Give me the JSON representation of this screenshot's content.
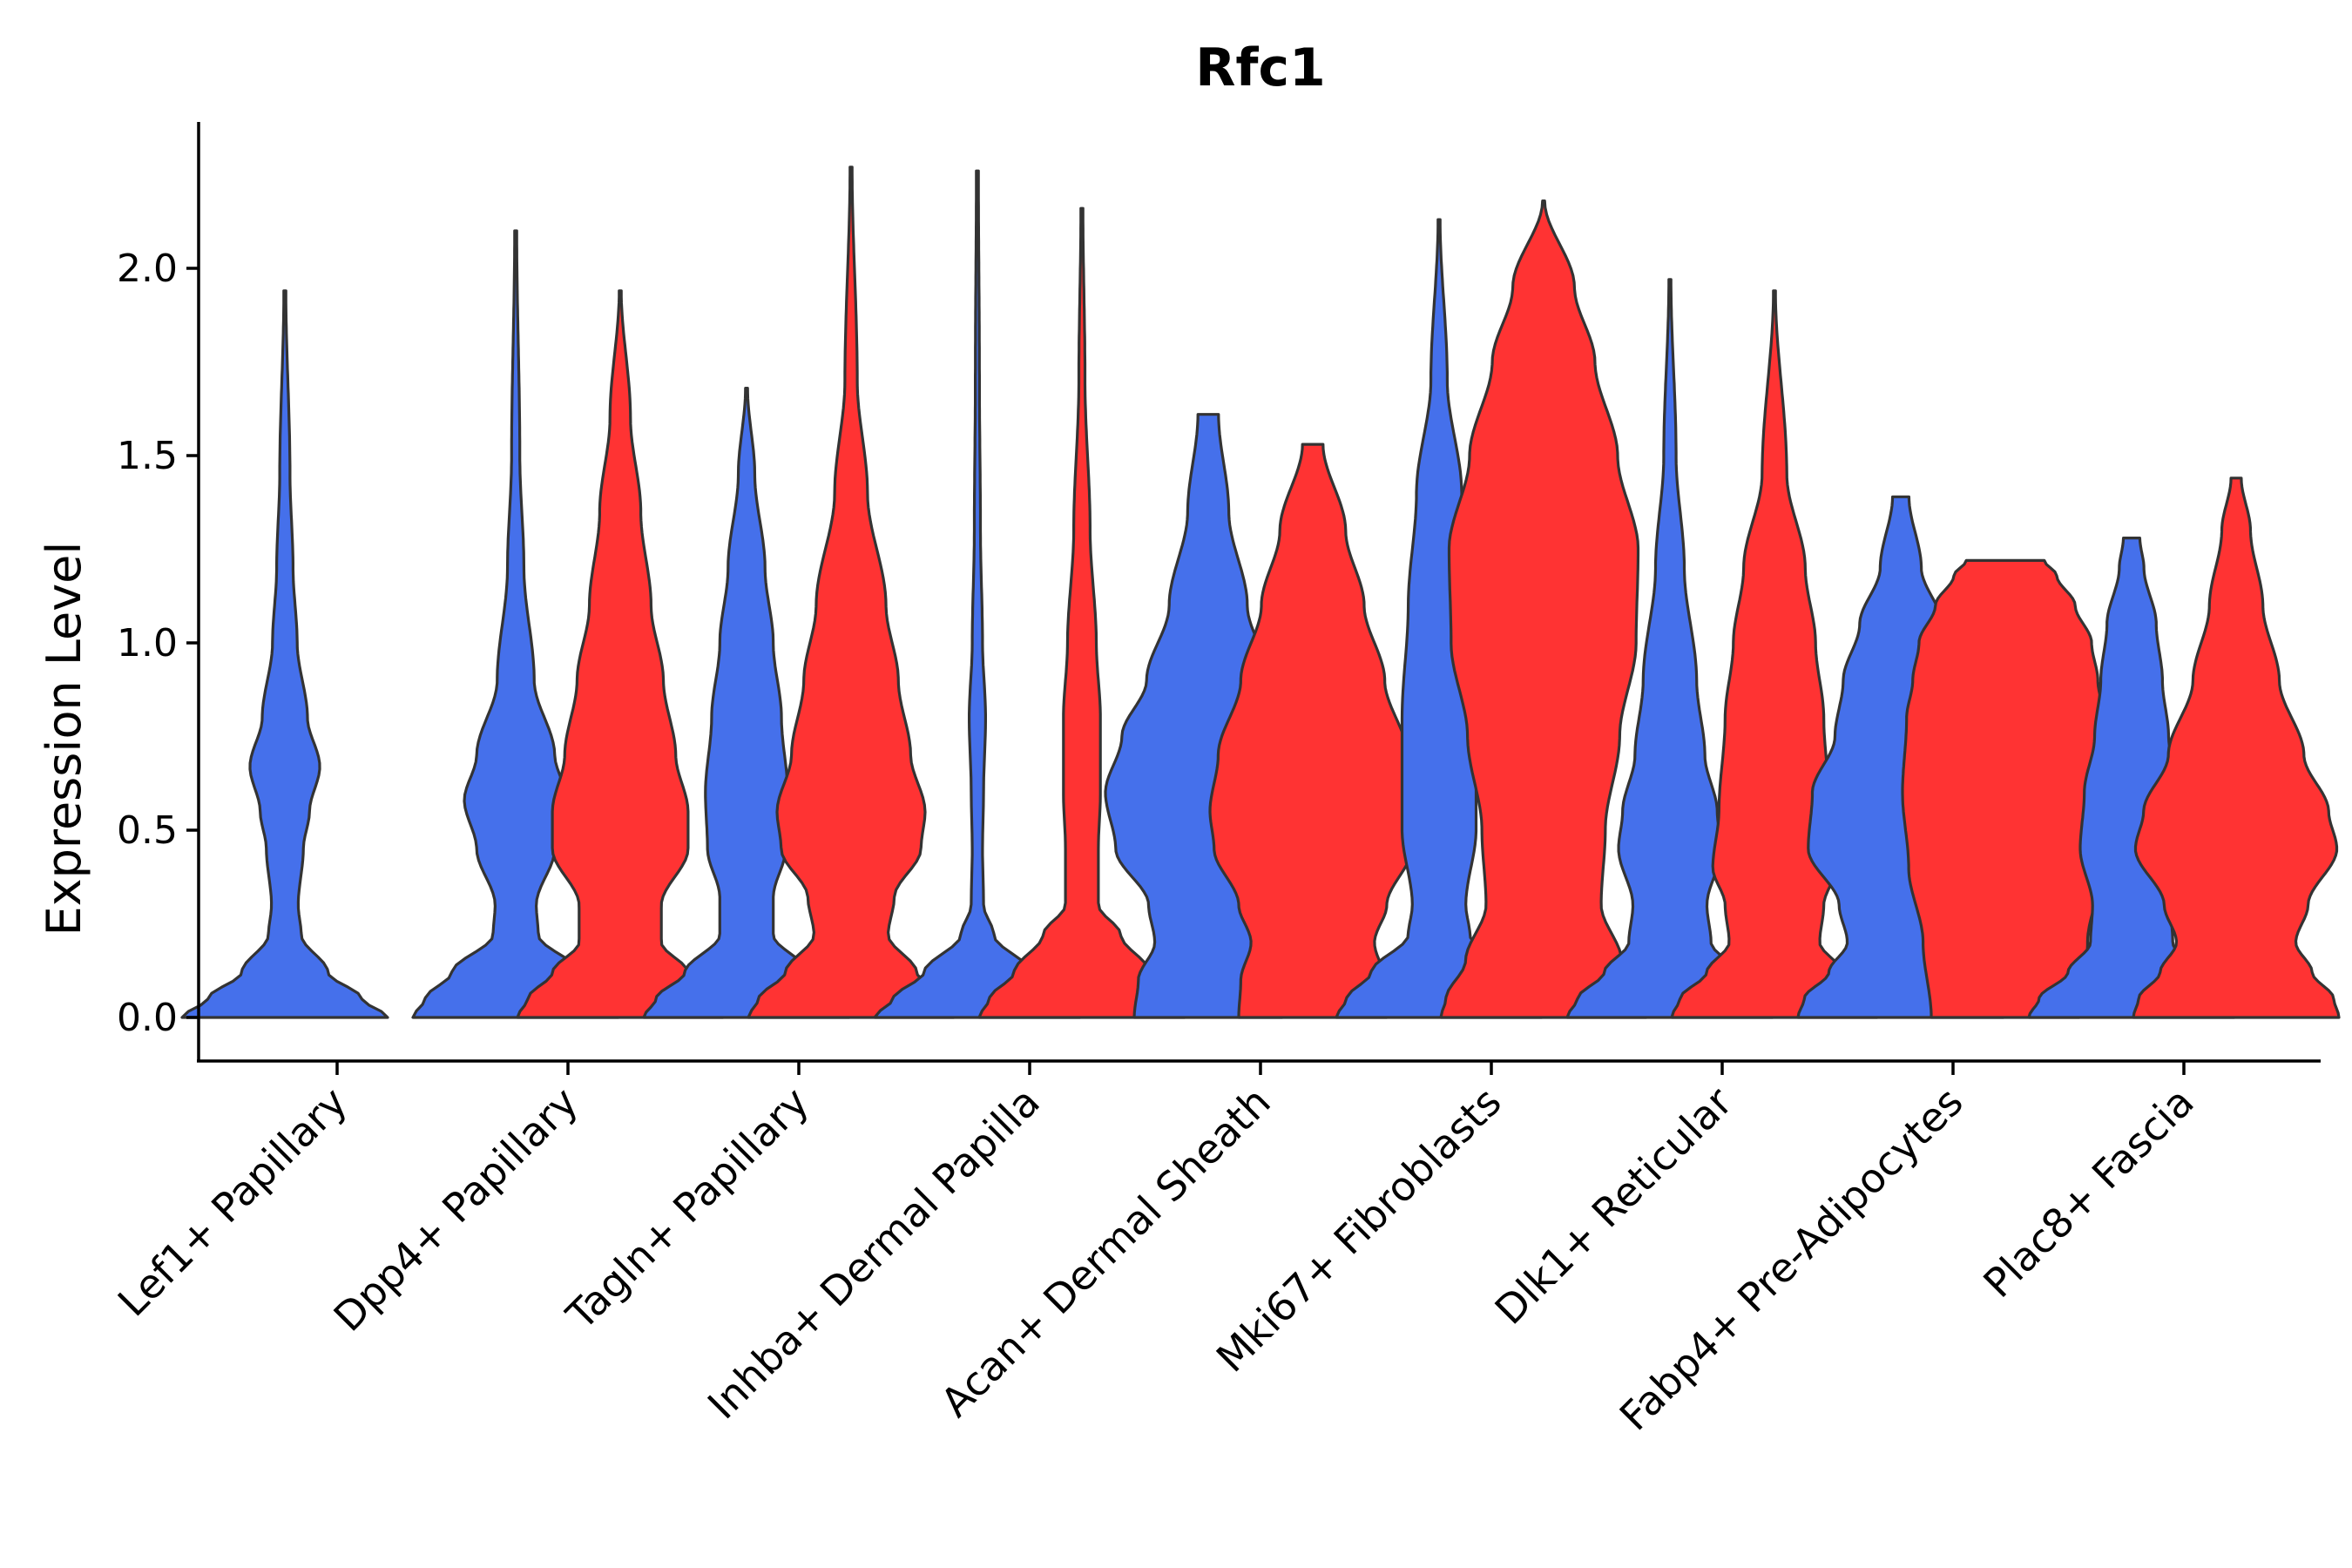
{
  "chart_data": {
    "type": "violin",
    "title": "Rfc1",
    "xlabel": "",
    "ylabel": "Expression Level",
    "ylim": [
      -0.11,
      2.38
    ],
    "yticks": [
      "0.0",
      "0.5",
      "1.0",
      "1.5",
      "2.0"
    ],
    "grid": false,
    "legend": "none",
    "colors": {
      "blue": "#4570EB",
      "red": "#FF3333",
      "outline": "#333333"
    },
    "categories": [
      "Lef1+ Papillary",
      "Dpp4+ Papillary",
      "Tagln+ Papillary",
      "Inhba+ Dermal Papilla",
      "Acan+ Dermal Sheath",
      "Mki67+ Fibroblasts",
      "Dlk1+ Reticular",
      "Fabp4+ Pre-Adipocytes",
      "Plac8+ Fascia"
    ],
    "violins": [
      {
        "category": "Lef1+ Papillary",
        "group": "blue",
        "max": 1.94,
        "profile": [
          [
            0,
            1.0
          ],
          [
            0.05,
            0.75
          ],
          [
            0.12,
            0.42
          ],
          [
            0.22,
            0.16
          ],
          [
            0.3,
            0.13
          ],
          [
            0.45,
            0.18
          ],
          [
            0.55,
            0.24
          ],
          [
            0.67,
            0.34
          ],
          [
            0.8,
            0.22
          ],
          [
            1.0,
            0.12
          ],
          [
            1.2,
            0.08
          ],
          [
            1.45,
            0.05
          ],
          [
            1.94,
            0.01
          ]
        ]
      },
      {
        "category": "Dpp4+ Papillary",
        "group": "blue",
        "max": 2.1,
        "profile": [
          [
            0,
            1.0
          ],
          [
            0.05,
            0.88
          ],
          [
            0.12,
            0.62
          ],
          [
            0.22,
            0.22
          ],
          [
            0.3,
            0.2
          ],
          [
            0.45,
            0.38
          ],
          [
            0.58,
            0.5
          ],
          [
            0.7,
            0.38
          ],
          [
            0.9,
            0.18
          ],
          [
            1.2,
            0.08
          ],
          [
            1.5,
            0.04
          ],
          [
            2.1,
            0.01
          ]
        ]
      },
      {
        "category": "Dpp4+ Papillary",
        "group": "red",
        "max": 1.94,
        "profile": [
          [
            0,
            1.0
          ],
          [
            0.05,
            0.9
          ],
          [
            0.12,
            0.66
          ],
          [
            0.2,
            0.4
          ],
          [
            0.3,
            0.4
          ],
          [
            0.45,
            0.66
          ],
          [
            0.55,
            0.66
          ],
          [
            0.7,
            0.54
          ],
          [
            0.9,
            0.42
          ],
          [
            1.1,
            0.3
          ],
          [
            1.35,
            0.2
          ],
          [
            1.6,
            0.1
          ],
          [
            1.94,
            0.01
          ]
        ]
      },
      {
        "category": "Tagln+ Papillary",
        "group": "blue",
        "max": 1.68,
        "profile": [
          [
            0,
            1.0
          ],
          [
            0.05,
            0.88
          ],
          [
            0.12,
            0.6
          ],
          [
            0.22,
            0.26
          ],
          [
            0.32,
            0.26
          ],
          [
            0.45,
            0.38
          ],
          [
            0.6,
            0.4
          ],
          [
            0.8,
            0.34
          ],
          [
            1.0,
            0.26
          ],
          [
            1.2,
            0.18
          ],
          [
            1.45,
            0.08
          ],
          [
            1.68,
            0.01
          ]
        ]
      },
      {
        "category": "Tagln+ Papillary",
        "group": "red",
        "max": 2.27,
        "profile": [
          [
            0,
            1.0
          ],
          [
            0.05,
            0.9
          ],
          [
            0.12,
            0.64
          ],
          [
            0.22,
            0.36
          ],
          [
            0.32,
            0.42
          ],
          [
            0.45,
            0.68
          ],
          [
            0.55,
            0.72
          ],
          [
            0.7,
            0.58
          ],
          [
            0.9,
            0.46
          ],
          [
            1.1,
            0.34
          ],
          [
            1.4,
            0.16
          ],
          [
            1.7,
            0.06
          ],
          [
            2.27,
            0.01
          ]
        ]
      },
      {
        "category": "Inhba+ Dermal Papilla",
        "group": "blue",
        "max": 2.26,
        "profile": [
          [
            0,
            1.0
          ],
          [
            0.05,
            0.82
          ],
          [
            0.12,
            0.52
          ],
          [
            0.22,
            0.16
          ],
          [
            0.3,
            0.06
          ],
          [
            0.45,
            0.05
          ],
          [
            0.6,
            0.06
          ],
          [
            0.8,
            0.08
          ],
          [
            1.0,
            0.05
          ],
          [
            1.3,
            0.03
          ],
          [
            1.7,
            0.02
          ],
          [
            2.26,
            0.01
          ]
        ]
      },
      {
        "category": "Inhba+ Dermal Papilla",
        "group": "red",
        "max": 2.16,
        "profile": [
          [
            0,
            1.0
          ],
          [
            0.05,
            0.9
          ],
          [
            0.12,
            0.66
          ],
          [
            0.22,
            0.38
          ],
          [
            0.3,
            0.16
          ],
          [
            0.45,
            0.16
          ],
          [
            0.6,
            0.18
          ],
          [
            0.8,
            0.18
          ],
          [
            1.0,
            0.14
          ],
          [
            1.3,
            0.08
          ],
          [
            1.7,
            0.03
          ],
          [
            2.16,
            0.01
          ]
        ]
      },
      {
        "category": "Acan+ Dermal Sheath",
        "group": "blue",
        "max": 1.61,
        "profile": [
          [
            0,
            0.72
          ],
          [
            0.1,
            0.68
          ],
          [
            0.2,
            0.52
          ],
          [
            0.3,
            0.58
          ],
          [
            0.45,
            0.9
          ],
          [
            0.6,
            1.0
          ],
          [
            0.75,
            0.84
          ],
          [
            0.9,
            0.6
          ],
          [
            1.1,
            0.38
          ],
          [
            1.35,
            0.2
          ],
          [
            1.61,
            0.1
          ]
        ]
      },
      {
        "category": "Acan+ Dermal Sheath",
        "group": "red",
        "max": 1.53,
        "profile": [
          [
            0,
            0.72
          ],
          [
            0.1,
            0.7
          ],
          [
            0.2,
            0.6
          ],
          [
            0.3,
            0.72
          ],
          [
            0.45,
            0.96
          ],
          [
            0.55,
            1.0
          ],
          [
            0.7,
            0.92
          ],
          [
            0.9,
            0.7
          ],
          [
            1.1,
            0.5
          ],
          [
            1.3,
            0.32
          ],
          [
            1.53,
            0.1
          ]
        ]
      },
      {
        "category": "Mki67+ Fibroblasts",
        "group": "blue",
        "max": 2.13,
        "profile": [
          [
            0,
            1.0
          ],
          [
            0.05,
            0.9
          ],
          [
            0.12,
            0.66
          ],
          [
            0.22,
            0.3
          ],
          [
            0.3,
            0.26
          ],
          [
            0.5,
            0.36
          ],
          [
            0.8,
            0.36
          ],
          [
            1.1,
            0.3
          ],
          [
            1.4,
            0.22
          ],
          [
            1.7,
            0.08
          ],
          [
            2.13,
            0.01
          ]
        ]
      },
      {
        "category": "Mki67+ Fibroblasts",
        "group": "red",
        "max": 2.18,
        "profile": [
          [
            0,
            1.0
          ],
          [
            0.05,
            0.95
          ],
          [
            0.15,
            0.76
          ],
          [
            0.3,
            0.56
          ],
          [
            0.5,
            0.6
          ],
          [
            0.75,
            0.74
          ],
          [
            1.0,
            0.9
          ],
          [
            1.25,
            0.92
          ],
          [
            1.5,
            0.72
          ],
          [
            1.75,
            0.5
          ],
          [
            1.95,
            0.3
          ],
          [
            2.18,
            0.01
          ]
        ]
      },
      {
        "category": "Dlk1+ Reticular",
        "group": "blue",
        "max": 1.97,
        "profile": [
          [
            0,
            1.0
          ],
          [
            0.05,
            0.9
          ],
          [
            0.12,
            0.64
          ],
          [
            0.2,
            0.4
          ],
          [
            0.3,
            0.36
          ],
          [
            0.45,
            0.5
          ],
          [
            0.55,
            0.46
          ],
          [
            0.7,
            0.34
          ],
          [
            0.9,
            0.26
          ],
          [
            1.2,
            0.14
          ],
          [
            1.5,
            0.06
          ],
          [
            1.97,
            0.01
          ]
        ]
      },
      {
        "category": "Dlk1+ Reticular",
        "group": "red",
        "max": 1.94,
        "profile": [
          [
            0,
            1.0
          ],
          [
            0.05,
            0.92
          ],
          [
            0.12,
            0.66
          ],
          [
            0.2,
            0.44
          ],
          [
            0.3,
            0.48
          ],
          [
            0.4,
            0.6
          ],
          [
            0.55,
            0.54
          ],
          [
            0.8,
            0.48
          ],
          [
            1.0,
            0.4
          ],
          [
            1.2,
            0.3
          ],
          [
            1.45,
            0.12
          ],
          [
            1.94,
            0.01
          ]
        ]
      },
      {
        "category": "Fabp4+ Pre-Adipocytes",
        "group": "blue",
        "max": 1.39,
        "profile": [
          [
            0,
            1.0
          ],
          [
            0.05,
            0.94
          ],
          [
            0.12,
            0.7
          ],
          [
            0.2,
            0.52
          ],
          [
            0.3,
            0.6
          ],
          [
            0.45,
            0.9
          ],
          [
            0.6,
            0.86
          ],
          [
            0.75,
            0.64
          ],
          [
            0.9,
            0.56
          ],
          [
            1.05,
            0.4
          ],
          [
            1.2,
            0.2
          ],
          [
            1.39,
            0.08
          ]
        ]
      },
      {
        "category": "Fabp4+ Pre-Adipocytes",
        "group": "red",
        "max": 1.22,
        "profile": [
          [
            0,
            0.72
          ],
          [
            0.2,
            0.8
          ],
          [
            0.4,
            0.94
          ],
          [
            0.6,
            1.0
          ],
          [
            0.8,
            0.96
          ],
          [
            0.9,
            0.9
          ],
          [
            1.0,
            0.84
          ],
          [
            1.1,
            0.68
          ],
          [
            1.18,
            0.5
          ],
          [
            1.22,
            0.38
          ]
        ]
      },
      {
        "category": "Plac8+ Fascia",
        "group": "blue",
        "max": 1.28,
        "profile": [
          [
            0,
            1.0
          ],
          [
            0.05,
            0.9
          ],
          [
            0.12,
            0.62
          ],
          [
            0.2,
            0.4
          ],
          [
            0.3,
            0.38
          ],
          [
            0.45,
            0.5
          ],
          [
            0.6,
            0.46
          ],
          [
            0.75,
            0.36
          ],
          [
            0.9,
            0.3
          ],
          [
            1.05,
            0.24
          ],
          [
            1.2,
            0.12
          ],
          [
            1.28,
            0.08
          ]
        ]
      },
      {
        "category": "Plac8+ Fascia",
        "group": "red",
        "max": 1.44,
        "profile": [
          [
            0,
            1.0
          ],
          [
            0.05,
            0.95
          ],
          [
            0.12,
            0.74
          ],
          [
            0.2,
            0.58
          ],
          [
            0.3,
            0.7
          ],
          [
            0.45,
            0.98
          ],
          [
            0.55,
            0.9
          ],
          [
            0.7,
            0.66
          ],
          [
            0.9,
            0.42
          ],
          [
            1.1,
            0.26
          ],
          [
            1.3,
            0.14
          ],
          [
            1.44,
            0.05
          ]
        ]
      }
    ]
  }
}
